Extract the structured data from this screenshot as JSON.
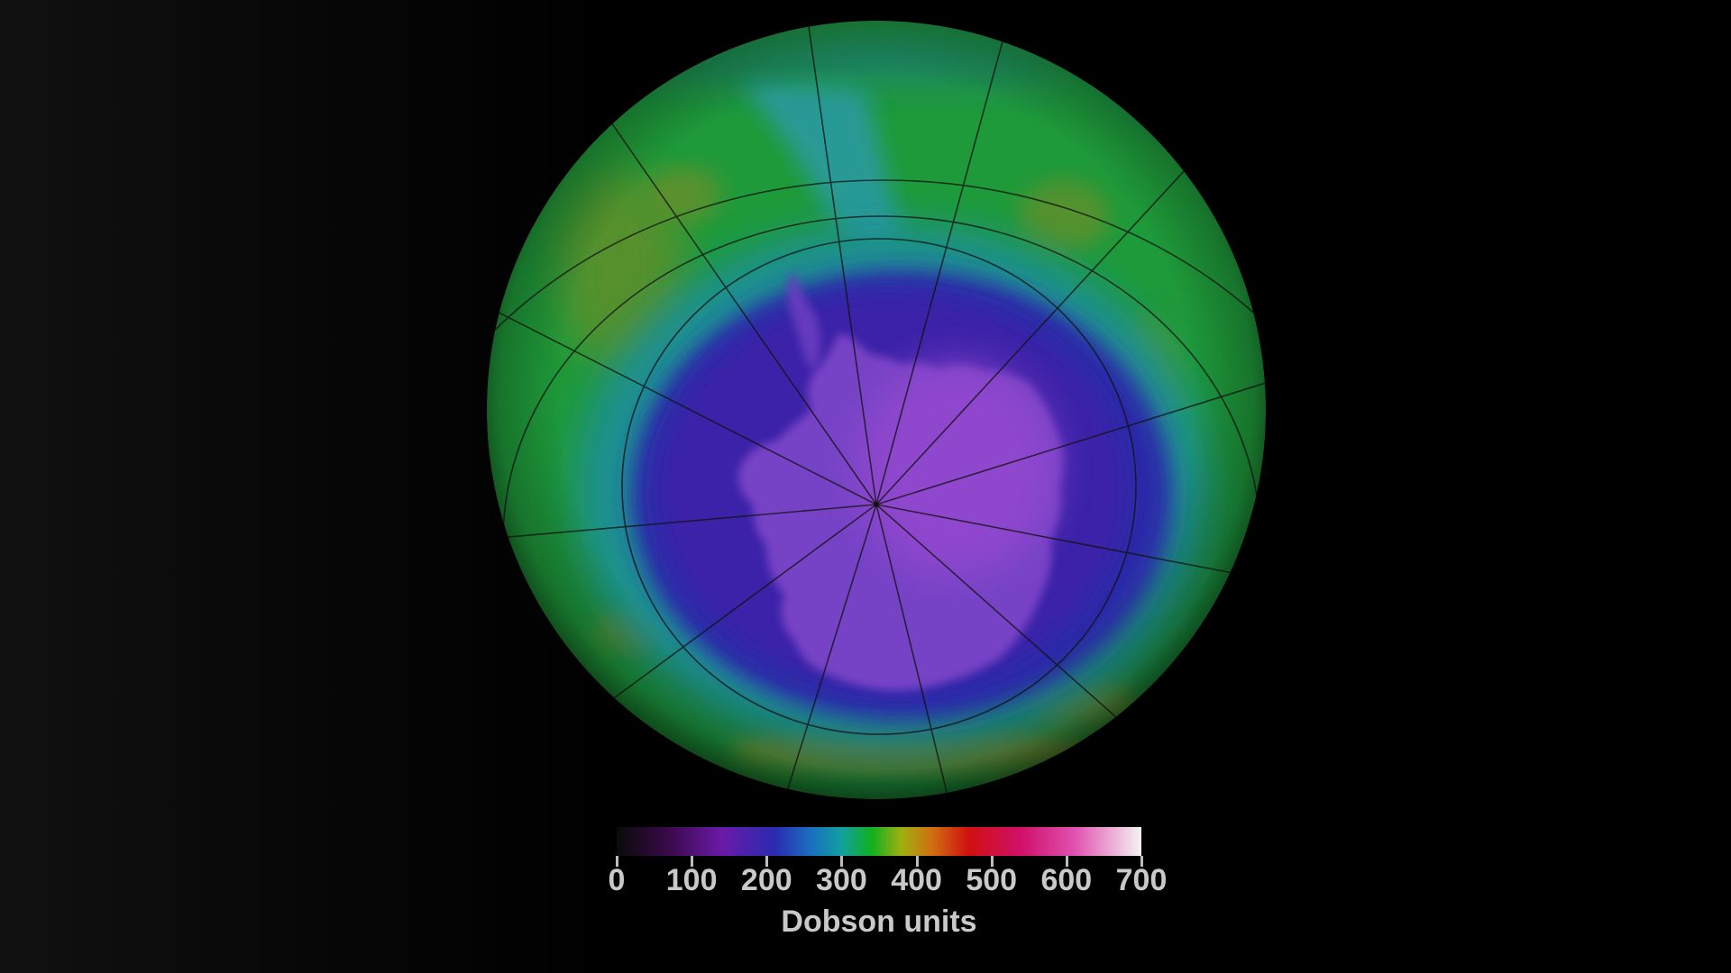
{
  "map": {
    "projection": "orthographic-south-polar",
    "background": "#000000",
    "colors": {
      "ozone_low": "#3a1fa8",
      "ozone_core": "#5a2bb8",
      "antarctica_overlay": "#8a4fd0",
      "ring_mid": "#1e8fa0",
      "ring_high": "#1fa03a",
      "ring_peak": "#a8a82a",
      "graticule": "#1a1a1a"
    }
  },
  "legend": {
    "unit": "Dobson units",
    "ticks": [
      "0",
      "100",
      "200",
      "300",
      "400",
      "500",
      "600",
      "700"
    ],
    "range": [
      0,
      700
    ],
    "stops": [
      {
        "value": 0,
        "color": "#0a0a0a"
      },
      {
        "value": 70,
        "color": "#3a0a4a"
      },
      {
        "value": 140,
        "color": "#6a1aa8"
      },
      {
        "value": 210,
        "color": "#2a2ab0"
      },
      {
        "value": 260,
        "color": "#1a70c0"
      },
      {
        "value": 300,
        "color": "#12a0a0"
      },
      {
        "value": 340,
        "color": "#10b020"
      },
      {
        "value": 380,
        "color": "#a0b010"
      },
      {
        "value": 420,
        "color": "#d07010"
      },
      {
        "value": 470,
        "color": "#d01010"
      },
      {
        "value": 540,
        "color": "#d0106a"
      },
      {
        "value": 610,
        "color": "#e050b0"
      },
      {
        "value": 700,
        "color": "#f4f4f4"
      }
    ]
  }
}
